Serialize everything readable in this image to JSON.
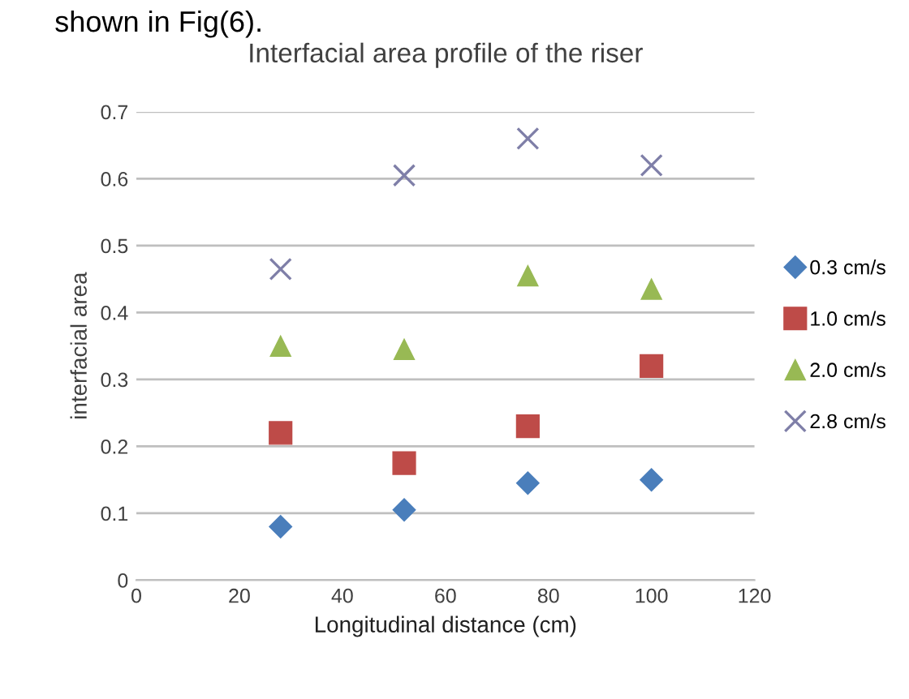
{
  "chart_data": {
    "type": "scatter",
    "title": "Interfacial area profile of the riser",
    "xlabel": "Longitudinal distance (cm)",
    "ylabel": "interfacial area",
    "annotations": [
      "shown in Fig(6)."
    ],
    "x": [
      28,
      52,
      76,
      100
    ],
    "series": [
      {
        "name": "0.3 cm/s",
        "color": "#4a7ebb",
        "marker": "diamond",
        "values": [
          0.08,
          0.105,
          0.145,
          0.15
        ]
      },
      {
        "name": "1.0 cm/s",
        "color": "#be4b48",
        "marker": "square",
        "values": [
          0.22,
          0.175,
          0.23,
          0.32
        ]
      },
      {
        "name": "2.0 cm/s",
        "color": "#98b954",
        "marker": "triangle",
        "values": [
          0.35,
          0.345,
          0.455,
          0.435
        ]
      },
      {
        "name": "2.8 cm/s",
        "color": "#7f7fa8",
        "marker": "cross",
        "values": [
          0.465,
          0.605,
          0.66,
          0.62
        ]
      }
    ],
    "xlim": [
      0,
      120
    ],
    "xticks": [
      0,
      20,
      40,
      60,
      80,
      100,
      120
    ],
    "ylim": [
      0,
      0.7
    ],
    "yticks": [
      0,
      0.1,
      0.2,
      0.3,
      0.4,
      0.5,
      0.6,
      0.7
    ],
    "grid": "y",
    "legend": "right"
  }
}
